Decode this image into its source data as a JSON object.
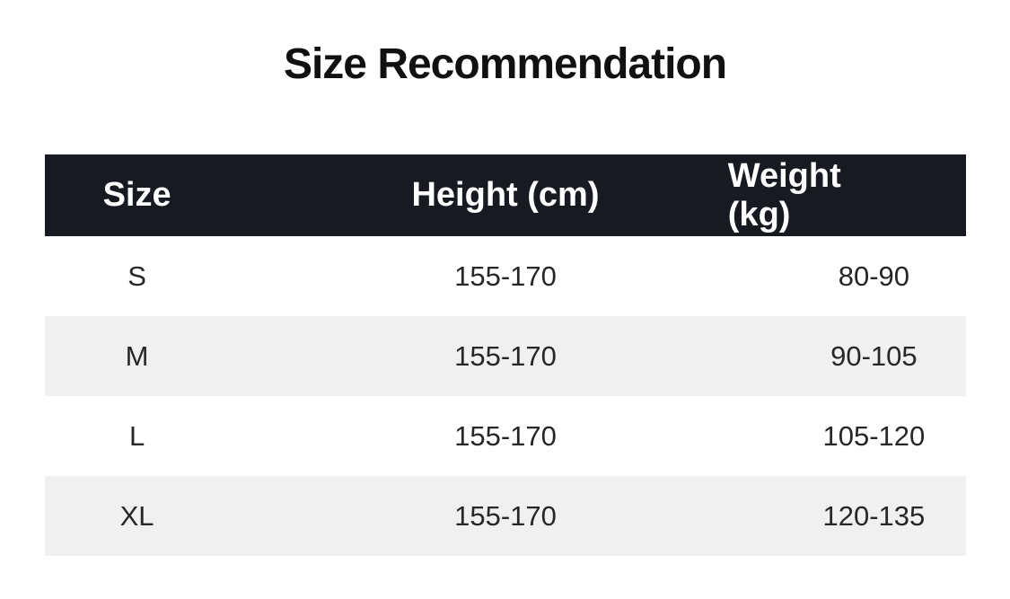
{
  "title": "Size Recommendation",
  "chart_data": {
    "type": "table",
    "title": "Size Recommendation",
    "columns": [
      "Size",
      "Height (cm)",
      "Weight (kg)"
    ],
    "rows": [
      [
        "S",
        "155-170",
        "80-90"
      ],
      [
        "M",
        "155-170",
        "90-105"
      ],
      [
        "L",
        "155-170",
        "105-120"
      ],
      [
        "XL",
        "155-170",
        "120-135"
      ]
    ]
  },
  "colors": {
    "header_bg": "#171a21",
    "header_text": "#ffffff",
    "row_bg": "#ffffff",
    "row_alt_bg": "#f0f0f1",
    "body_text": "#272727",
    "title_text": "#111111"
  }
}
